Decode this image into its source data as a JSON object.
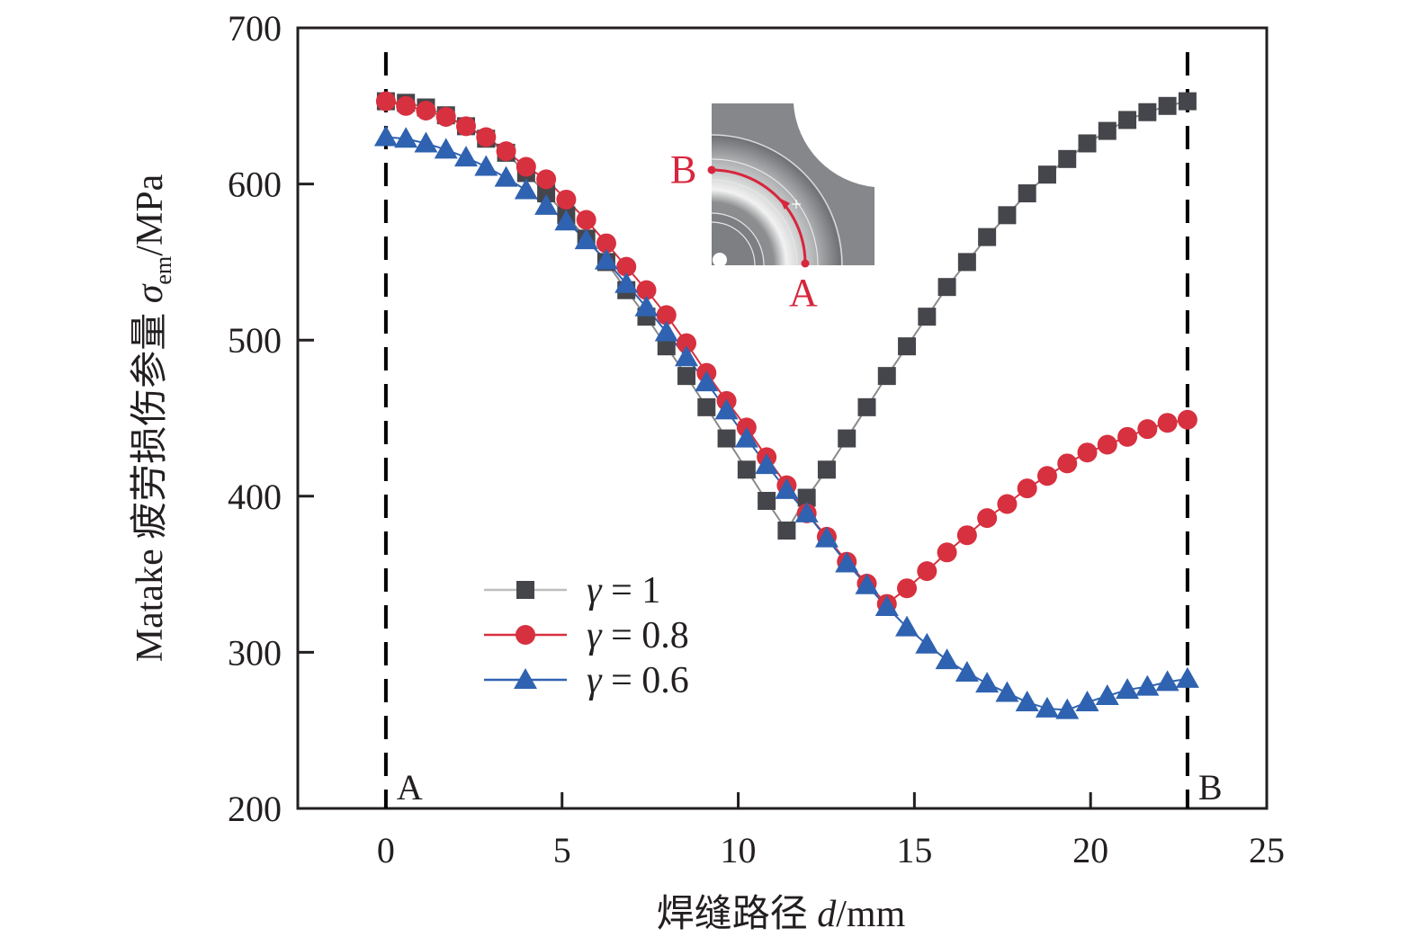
{
  "chart_data": {
    "type": "line",
    "title": "",
    "xlabel": "焊缝路径 d/mm",
    "xlabel_parts": {
      "prefix": "焊缝路径 ",
      "var": "d",
      "suffix": "/mm"
    },
    "ylabel": "Matake 疲劳损伤参量 σem/MPa",
    "ylabel_parts": {
      "prefix": "Matake 疲劳损伤参量 ",
      "var": "σ",
      "sub": "em",
      "suffix": "/MPa"
    },
    "xlim": [
      -2.5,
      25
    ],
    "ylim": [
      200,
      700
    ],
    "xticks": [
      0,
      5,
      10,
      15,
      20,
      25
    ],
    "yticks": [
      200,
      300,
      400,
      500,
      600,
      700
    ],
    "grid": false,
    "legend_position": "center-left",
    "reference_lines": [
      {
        "x": 0,
        "label": "A",
        "style": "dashed"
      },
      {
        "x": 22.75,
        "label": "B",
        "style": "dashed"
      }
    ],
    "x_start": 0,
    "x_end": 22.75,
    "n_points": 41,
    "series": [
      {
        "name": "γ = 1",
        "gamma": "1",
        "marker": "square",
        "color": "#45464b",
        "line_color": "#8a8a8a",
        "values": [
          653,
          652,
          649,
          644,
          637,
          629,
          620,
          607,
          594,
          580,
          565,
          550,
          532,
          515,
          496,
          477,
          457,
          437,
          417,
          397,
          378,
          399,
          417,
          437,
          457,
          477,
          496,
          515,
          534,
          550,
          566,
          580,
          594,
          606,
          616,
          626,
          634,
          641,
          646,
          650,
          653
        ]
      },
      {
        "name": "γ = 0.8",
        "gamma": "0.8",
        "marker": "circle",
        "color": "#d7303f",
        "line_color": "#d7303f",
        "values": [
          653,
          650,
          647,
          643,
          637,
          630,
          621,
          611,
          603,
          590,
          577,
          562,
          547,
          532,
          516,
          498,
          479,
          461,
          444,
          425,
          407,
          389,
          374,
          358,
          344,
          331,
          341,
          352,
          364,
          375,
          386,
          395,
          405,
          413,
          421,
          428,
          433,
          438,
          443,
          447,
          449
        ]
      },
      {
        "name": "γ = 0.6",
        "gamma": "0.6",
        "marker": "triangle",
        "color": "#2f62b0",
        "line_color": "#2f62b0",
        "values": [
          630,
          629,
          626,
          622,
          617,
          611,
          604,
          596,
          586,
          576,
          564,
          551,
          536,
          521,
          505,
          489,
          473,
          455,
          437,
          420,
          404,
          389,
          373,
          357,
          343,
          329,
          316,
          305,
          295,
          287,
          280,
          274,
          268,
          264,
          263,
          268,
          272,
          276,
          278,
          281,
          283
        ]
      }
    ]
  },
  "inset": {
    "label_start": "A",
    "label_end": "B",
    "description": "weld path arc from A to B"
  },
  "legend": {
    "symbol": "γ",
    "eq": " = "
  }
}
